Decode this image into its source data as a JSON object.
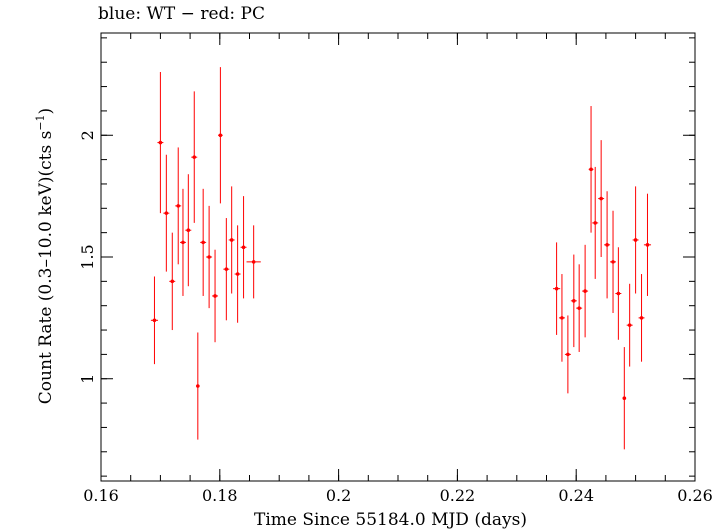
{
  "chart_data": {
    "type": "scatter",
    "title": "blue: WT − red: PC",
    "xlabel": "Time Since 55184.0 MJD (days)",
    "ylabel_text": "Count Rate (0.3–10.0 keV)(cts s",
    "ylabel_sup": "−1",
    "ylabel_close": ")",
    "xlim": [
      0.16,
      0.26
    ],
    "ylim": [
      0.58,
      2.42
    ],
    "xticks": [
      0.16,
      0.18,
      0.2,
      0.22,
      0.24,
      0.26
    ],
    "xtick_labels": [
      "0.16",
      "0.18",
      "0.2",
      "0.22",
      "0.24",
      "0.26"
    ],
    "yticks": [
      1,
      1.5,
      2
    ],
    "ytick_labels": [
      "1",
      "1.5",
      "2"
    ],
    "grid": false,
    "series": [
      {
        "color": "#ff0000",
        "points": [
          {
            "x": 0.169,
            "y": 1.24,
            "yerr": 0.18,
            "xerr": 0.0006
          },
          {
            "x": 0.17,
            "y": 1.97,
            "yerr": 0.29,
            "xerr": 0.0005
          },
          {
            "x": 0.171,
            "y": 1.68,
            "yerr": 0.24,
            "xerr": 0.0005
          },
          {
            "x": 0.172,
            "y": 1.4,
            "yerr": 0.2,
            "xerr": 0.0005
          },
          {
            "x": 0.173,
            "y": 1.71,
            "yerr": 0.24,
            "xerr": 0.0005
          },
          {
            "x": 0.1738,
            "y": 1.56,
            "yerr": 0.22,
            "xerr": 0.0005
          },
          {
            "x": 0.1747,
            "y": 1.61,
            "yerr": 0.23,
            "xerr": 0.0005
          },
          {
            "x": 0.1757,
            "y": 1.91,
            "yerr": 0.27,
            "xerr": 0.0005
          },
          {
            "x": 0.1763,
            "y": 0.97,
            "yerr": 0.22,
            "xerr": 0.0003
          },
          {
            "x": 0.1772,
            "y": 1.56,
            "yerr": 0.22,
            "xerr": 0.0005
          },
          {
            "x": 0.1782,
            "y": 1.5,
            "yerr": 0.21,
            "xerr": 0.0005
          },
          {
            "x": 0.1792,
            "y": 1.34,
            "yerr": 0.19,
            "xerr": 0.0005
          },
          {
            "x": 0.1801,
            "y": 2.0,
            "yerr": 0.28,
            "xerr": 0.0004
          },
          {
            "x": 0.1811,
            "y": 1.45,
            "yerr": 0.21,
            "xerr": 0.0005
          },
          {
            "x": 0.182,
            "y": 1.57,
            "yerr": 0.22,
            "xerr": 0.0005
          },
          {
            "x": 0.183,
            "y": 1.43,
            "yerr": 0.2,
            "xerr": 0.0005
          },
          {
            "x": 0.184,
            "y": 1.54,
            "yerr": 0.21,
            "xerr": 0.0005
          },
          {
            "x": 0.1857,
            "y": 1.48,
            "yerr": 0.15,
            "xerr": 0.0012
          },
          {
            "x": 0.2367,
            "y": 1.37,
            "yerr": 0.19,
            "xerr": 0.0006
          },
          {
            "x": 0.2376,
            "y": 1.25,
            "yerr": 0.18,
            "xerr": 0.0005
          },
          {
            "x": 0.2386,
            "y": 1.1,
            "yerr": 0.16,
            "xerr": 0.0005
          },
          {
            "x": 0.2396,
            "y": 1.32,
            "yerr": 0.19,
            "xerr": 0.0005
          },
          {
            "x": 0.2405,
            "y": 1.29,
            "yerr": 0.18,
            "xerr": 0.0005
          },
          {
            "x": 0.2415,
            "y": 1.36,
            "yerr": 0.19,
            "xerr": 0.0005
          },
          {
            "x": 0.2425,
            "y": 1.86,
            "yerr": 0.26,
            "xerr": 0.0004
          },
          {
            "x": 0.2432,
            "y": 1.64,
            "yerr": 0.23,
            "xerr": 0.0005
          },
          {
            "x": 0.2442,
            "y": 1.74,
            "yerr": 0.24,
            "xerr": 0.0005
          },
          {
            "x": 0.2452,
            "y": 1.55,
            "yerr": 0.22,
            "xerr": 0.0005
          },
          {
            "x": 0.2462,
            "y": 1.48,
            "yerr": 0.21,
            "xerr": 0.0005
          },
          {
            "x": 0.2471,
            "y": 1.35,
            "yerr": 0.19,
            "xerr": 0.0005
          },
          {
            "x": 0.2481,
            "y": 0.92,
            "yerr": 0.21,
            "xerr": 0.0003
          },
          {
            "x": 0.249,
            "y": 1.22,
            "yerr": 0.17,
            "xerr": 0.0005
          },
          {
            "x": 0.25,
            "y": 1.57,
            "yerr": 0.22,
            "xerr": 0.0005
          },
          {
            "x": 0.251,
            "y": 1.25,
            "yerr": 0.18,
            "xerr": 0.0005
          },
          {
            "x": 0.252,
            "y": 1.55,
            "yerr": 0.21,
            "xerr": 0.0006
          }
        ]
      }
    ]
  }
}
